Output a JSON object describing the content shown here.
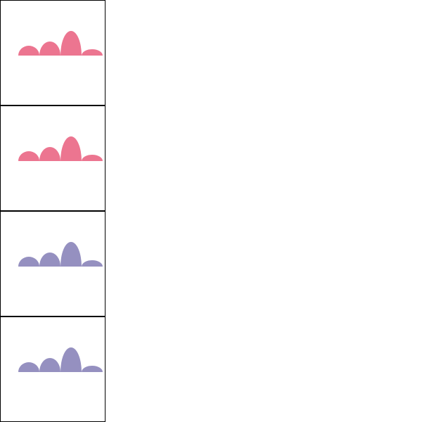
{
  "chart_data": [
    {
      "type": "bump",
      "values": [
        14,
        20,
        35,
        9
      ],
      "color": "#ec7590"
    },
    {
      "type": "bump",
      "values": [
        14,
        20,
        35,
        9
      ],
      "color": "#ec7590"
    },
    {
      "type": "bump",
      "values": [
        14,
        20,
        35,
        9
      ],
      "color": "#9590c0"
    },
    {
      "type": "bump",
      "values": [
        14,
        20,
        35,
        9
      ],
      "color": "#9590c0"
    }
  ]
}
